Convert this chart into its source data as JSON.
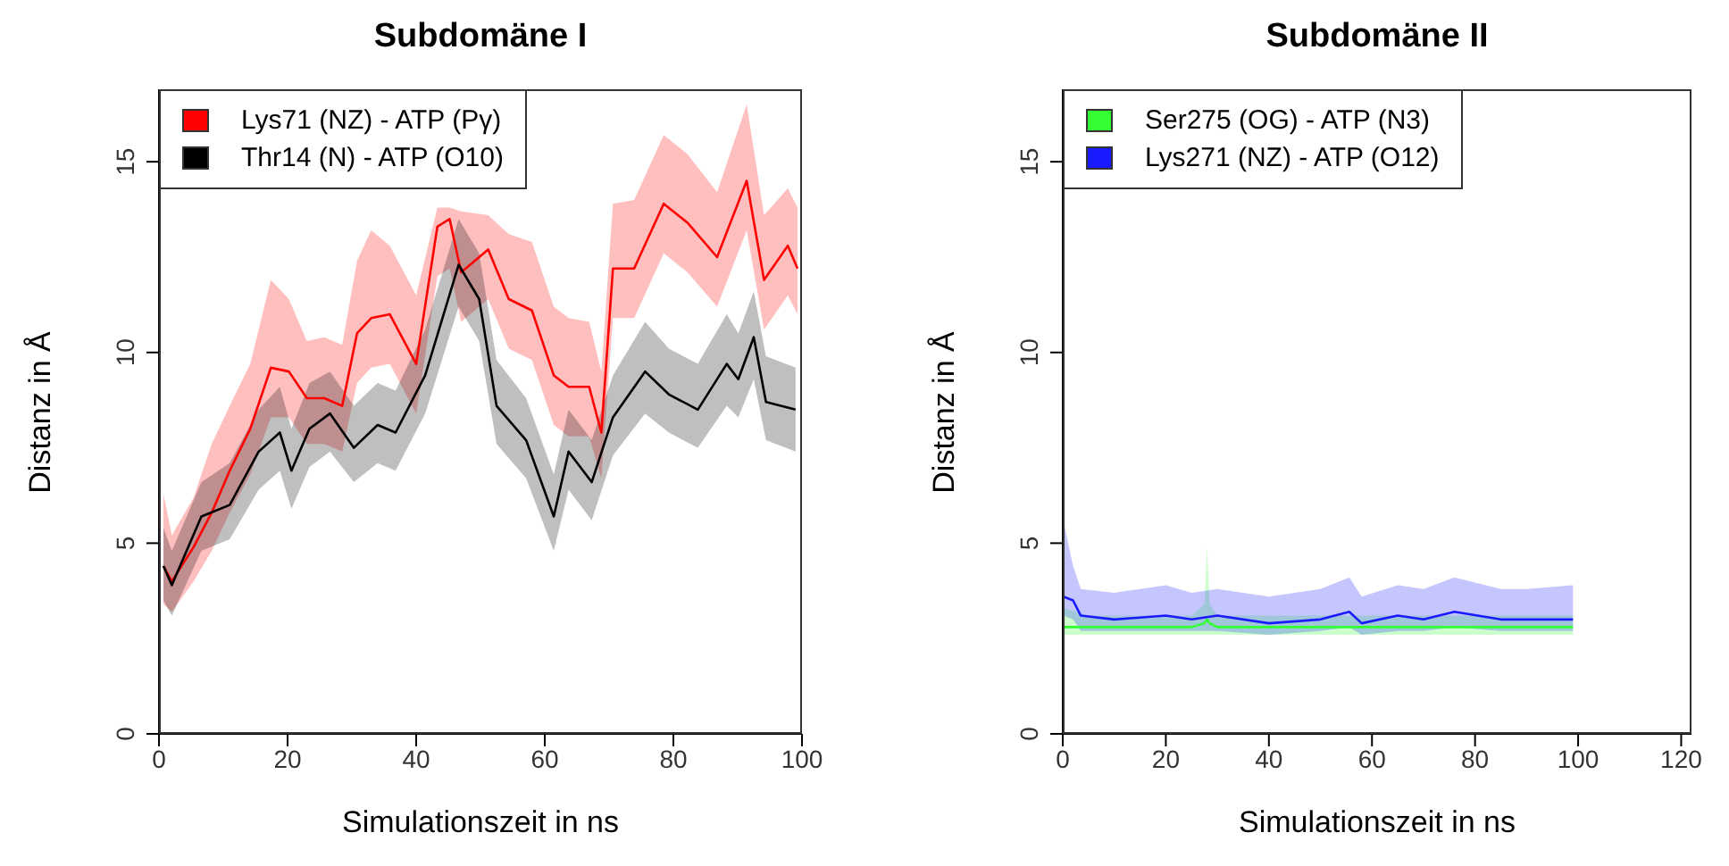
{
  "chart_data": [
    {
      "type": "line",
      "title": "Subdomäne I",
      "xlabel": "Simulationszeit in ns",
      "ylabel": "Distanz in Å",
      "xlim": [
        0,
        100
      ],
      "xticks": [
        0,
        20,
        40,
        60,
        80,
        100
      ],
      "ylim": [
        0,
        16.9
      ],
      "yticks": [
        0,
        5,
        10,
        15
      ],
      "legend": "top left",
      "series": [
        {
          "name": "Lys71 (NZ) - ATP (Pγ)",
          "color": "#ff0000",
          "x": [
            0.7,
            2,
            5.4,
            8.2,
            11,
            14.2,
            17.4,
            20.2,
            23,
            25.7,
            28.5,
            30.8,
            33,
            35.9,
            40,
            43.3,
            45.2,
            47,
            51.2,
            54.4,
            58,
            61.4,
            63.7,
            66.9,
            68.8,
            70.6,
            73.9,
            78.5,
            82.2,
            86.8,
            91.4,
            94.1,
            97.8,
            99.3
          ],
          "values": [
            4.4,
            4.0,
            4.9,
            5.8,
            6.9,
            8.0,
            9.6,
            9.5,
            8.8,
            8.8,
            8.6,
            10.5,
            10.9,
            11.0,
            9.7,
            13.3,
            13.5,
            12.1,
            12.7,
            11.4,
            11.1,
            9.4,
            9.1,
            9.1,
            7.9,
            12.2,
            12.2,
            13.9,
            13.4,
            12.5,
            14.5,
            11.9,
            12.8,
            12.2
          ],
          "lower": [
            3.4,
            3.2,
            4.0,
            4.8,
            5.8,
            6.8,
            8.3,
            8.3,
            7.6,
            7.6,
            7.4,
            9.2,
            9.6,
            9.7,
            8.4,
            12.0,
            12.2,
            10.8,
            11.4,
            10.1,
            9.8,
            8.1,
            7.8,
            7.8,
            6.7,
            10.9,
            10.9,
            12.6,
            12.1,
            11.2,
            13.2,
            10.6,
            11.5,
            11.0
          ],
          "upper": [
            6.3,
            5.2,
            6.2,
            7.6,
            8.6,
            9.7,
            11.9,
            11.4,
            10.3,
            10.4,
            10.2,
            12.4,
            13.2,
            12.8,
            11.5,
            13.8,
            13.8,
            13.7,
            13.6,
            13.1,
            12.9,
            11.2,
            10.9,
            10.8,
            9.5,
            13.9,
            14.0,
            15.7,
            15.2,
            14.2,
            16.5,
            13.6,
            14.3,
            13.8
          ]
        },
        {
          "name": "Thr14 (N) - ATP (O10)",
          "color": "#000000",
          "x": [
            0.7,
            2,
            6.6,
            11,
            15.5,
            18.8,
            20.6,
            23.4,
            26.6,
            30.3,
            34,
            36.8,
            41.4,
            46.6,
            49.8,
            52.5,
            57.1,
            61.4,
            63.7,
            67.3,
            70.6,
            75.6,
            79.3,
            83.8,
            88.3,
            90.1,
            92.5,
            94.4,
            99
          ],
          "values": [
            4.4,
            3.9,
            5.7,
            6.0,
            7.4,
            7.9,
            6.9,
            8.0,
            8.4,
            7.5,
            8.1,
            7.9,
            9.4,
            12.3,
            11.4,
            8.6,
            7.7,
            5.7,
            7.4,
            6.6,
            8.3,
            9.5,
            8.9,
            8.5,
            9.7,
            9.3,
            10.4,
            8.7,
            8.5
          ],
          "lower": [
            3.5,
            3.1,
            4.8,
            5.1,
            6.4,
            6.9,
            5.9,
            7.0,
            7.4,
            6.6,
            7.1,
            6.9,
            8.4,
            11.2,
            10.3,
            7.6,
            6.7,
            4.8,
            6.4,
            5.6,
            7.3,
            8.4,
            7.9,
            7.5,
            8.6,
            8.3,
            9.3,
            7.7,
            7.4
          ],
          "upper": [
            5.4,
            4.8,
            6.6,
            7.1,
            8.5,
            9.1,
            8.0,
            9.2,
            9.5,
            8.6,
            9.2,
            9.0,
            10.6,
            13.5,
            12.6,
            9.8,
            8.8,
            6.8,
            8.5,
            7.7,
            9.4,
            10.8,
            10.1,
            9.7,
            11.0,
            10.5,
            11.6,
            9.9,
            9.6
          ]
        }
      ]
    },
    {
      "type": "line",
      "title": "Subdomäne II",
      "xlabel": "Simulationszeit in ns",
      "ylabel": "Distanz in Å",
      "xlim": [
        0,
        122
      ],
      "xticks": [
        0,
        20,
        40,
        60,
        80,
        100,
        120
      ],
      "ylim": [
        0,
        16.9
      ],
      "yticks": [
        0,
        5,
        10,
        15
      ],
      "legend": "top left",
      "series": [
        {
          "name": "Ser275 (OG) - ATP (N3)",
          "color": "#33ff33",
          "x": [
            0.2,
            5,
            15,
            25,
            27.5,
            28,
            28.5,
            30,
            40,
            50,
            60,
            70,
            80,
            90,
            99
          ],
          "values": [
            2.8,
            2.8,
            2.8,
            2.8,
            2.9,
            3.0,
            2.9,
            2.8,
            2.8,
            2.8,
            2.8,
            2.8,
            2.8,
            2.8,
            2.8
          ],
          "lower": [
            2.6,
            2.6,
            2.6,
            2.6,
            2.6,
            2.6,
            2.6,
            2.6,
            2.6,
            2.6,
            2.6,
            2.6,
            2.6,
            2.6,
            2.6
          ],
          "upper": [
            3.3,
            3.1,
            3.1,
            3.1,
            3.4,
            4.9,
            3.4,
            3.1,
            3.1,
            3.1,
            3.1,
            3.1,
            3.1,
            3.1,
            3.1
          ]
        },
        {
          "name": "Lys271 (NZ) - ATP (O12)",
          "color": "#1a1aff",
          "x": [
            0.1,
            2,
            3.5,
            10,
            20,
            25,
            30,
            40,
            50,
            55.6,
            58,
            65,
            70,
            76,
            85,
            90,
            99
          ],
          "values": [
            3.6,
            3.5,
            3.1,
            3.0,
            3.1,
            3.0,
            3.1,
            2.9,
            3.0,
            3.2,
            2.9,
            3.1,
            3.0,
            3.2,
            3.0,
            3.0,
            3.0
          ],
          "lower": [
            3.1,
            3.0,
            2.7,
            2.7,
            2.7,
            2.7,
            2.7,
            2.6,
            2.7,
            2.8,
            2.6,
            2.7,
            2.7,
            2.8,
            2.7,
            2.7,
            2.7
          ],
          "upper": [
            5.6,
            4.4,
            3.8,
            3.7,
            3.9,
            3.7,
            3.8,
            3.6,
            3.8,
            4.1,
            3.6,
            3.9,
            3.8,
            4.1,
            3.8,
            3.8,
            3.9
          ]
        }
      ]
    }
  ]
}
